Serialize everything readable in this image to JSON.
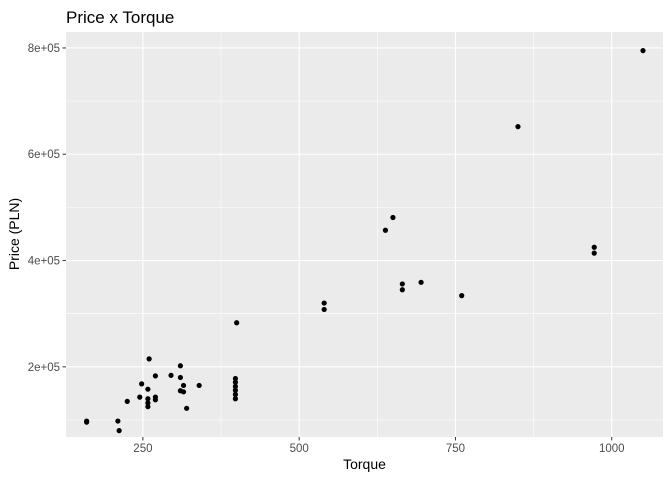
{
  "chart_data": {
    "type": "scatter",
    "title": "Price x Torque",
    "xlabel": "Torque",
    "ylabel": "Price (PLN)",
    "xlim": [
      127,
      1082
    ],
    "ylim": [
      68000,
      830000
    ],
    "x_ticks": [
      {
        "value": 250,
        "label": "250"
      },
      {
        "value": 500,
        "label": "500"
      },
      {
        "value": 750,
        "label": "750"
      },
      {
        "value": 1000,
        "label": "1000"
      }
    ],
    "y_ticks": [
      {
        "value": 200000,
        "label": "2e+05"
      },
      {
        "value": 400000,
        "label": "4e+05"
      },
      {
        "value": 600000,
        "label": "6e+05"
      },
      {
        "value": 800000,
        "label": "8e+05"
      }
    ],
    "grid": true,
    "colors": {
      "panel": "#ebebeb",
      "grid_major": "#ffffff",
      "point": "#000000",
      "tick_text": "#4d4d4d"
    },
    "points": [
      {
        "x": 160,
        "y": 98000
      },
      {
        "x": 160,
        "y": 96000
      },
      {
        "x": 210,
        "y": 98000
      },
      {
        "x": 212,
        "y": 80000
      },
      {
        "x": 225,
        "y": 135000
      },
      {
        "x": 245,
        "y": 143000
      },
      {
        "x": 248,
        "y": 168000
      },
      {
        "x": 258,
        "y": 125000
      },
      {
        "x": 258,
        "y": 132000
      },
      {
        "x": 258,
        "y": 140000
      },
      {
        "x": 258,
        "y": 158000
      },
      {
        "x": 260,
        "y": 215000
      },
      {
        "x": 270,
        "y": 138000
      },
      {
        "x": 270,
        "y": 143000
      },
      {
        "x": 270,
        "y": 183000
      },
      {
        "x": 295,
        "y": 184000
      },
      {
        "x": 310,
        "y": 155000
      },
      {
        "x": 310,
        "y": 180000
      },
      {
        "x": 310,
        "y": 202000
      },
      {
        "x": 315,
        "y": 153000
      },
      {
        "x": 315,
        "y": 165000
      },
      {
        "x": 320,
        "y": 122000
      },
      {
        "x": 340,
        "y": 165000
      },
      {
        "x": 398,
        "y": 140000
      },
      {
        "x": 398,
        "y": 148000
      },
      {
        "x": 398,
        "y": 156000
      },
      {
        "x": 398,
        "y": 163000
      },
      {
        "x": 398,
        "y": 171000
      },
      {
        "x": 398,
        "y": 178000
      },
      {
        "x": 400,
        "y": 283000
      },
      {
        "x": 540,
        "y": 308000
      },
      {
        "x": 540,
        "y": 320000
      },
      {
        "x": 638,
        "y": 457000
      },
      {
        "x": 650,
        "y": 481000
      },
      {
        "x": 665,
        "y": 345000
      },
      {
        "x": 665,
        "y": 356000
      },
      {
        "x": 695,
        "y": 359000
      },
      {
        "x": 760,
        "y": 334000
      },
      {
        "x": 850,
        "y": 652000
      },
      {
        "x": 972,
        "y": 414000
      },
      {
        "x": 972,
        "y": 425000
      },
      {
        "x": 1050,
        "y": 795000
      }
    ]
  }
}
